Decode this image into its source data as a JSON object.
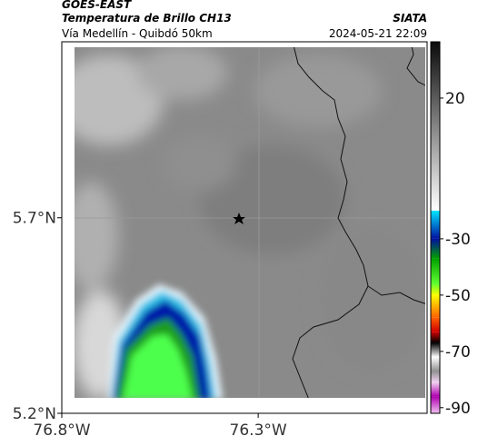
{
  "header": {
    "satellite": "GOES-EAST",
    "product": "Temperatura de Brillo CH13",
    "agency": "SIATA",
    "region": "Vía Medellín - Quibdó 50km",
    "datetime": "2024-05-21 22:09"
  },
  "map": {
    "lat_lim": [
      5.2,
      6.15
    ],
    "lon_lim": [
      -76.8,
      -75.87
    ],
    "lat_ticks": [
      {
        "value": 5.2,
        "label": "5.2°N"
      },
      {
        "value": 5.7,
        "label": "5.7°N"
      }
    ],
    "lon_ticks": [
      {
        "value": -76.8,
        "label": "76.8°W"
      },
      {
        "value": -76.3,
        "label": "76.3°W"
      }
    ]
  },
  "colorbar": {
    "lim": [
      -92,
      40
    ],
    "ticks": [
      20,
      -30,
      -50,
      -70,
      -90
    ],
    "stops": [
      {
        "value": 40,
        "color": "#0a0a0a"
      },
      {
        "value": -20,
        "color": "#ffffff"
      },
      {
        "value": -20,
        "color": "#00e5ff"
      },
      {
        "value": -30,
        "color": "#0010a0"
      },
      {
        "value": -37,
        "color": "#00a000"
      },
      {
        "value": -46,
        "color": "#60ff30"
      },
      {
        "value": -50,
        "color": "#ffff00"
      },
      {
        "value": -58,
        "color": "#ff6000"
      },
      {
        "value": -63,
        "color": "#d00000"
      },
      {
        "value": -67,
        "color": "#000000"
      },
      {
        "value": -72,
        "color": "#ffffff"
      },
      {
        "value": -77,
        "color": "#909090"
      },
      {
        "value": -81,
        "color": "#f0d0f0"
      },
      {
        "value": -86,
        "color": "#b000b0"
      },
      {
        "value": -92,
        "color": "#f0c0f0"
      }
    ]
  }
}
